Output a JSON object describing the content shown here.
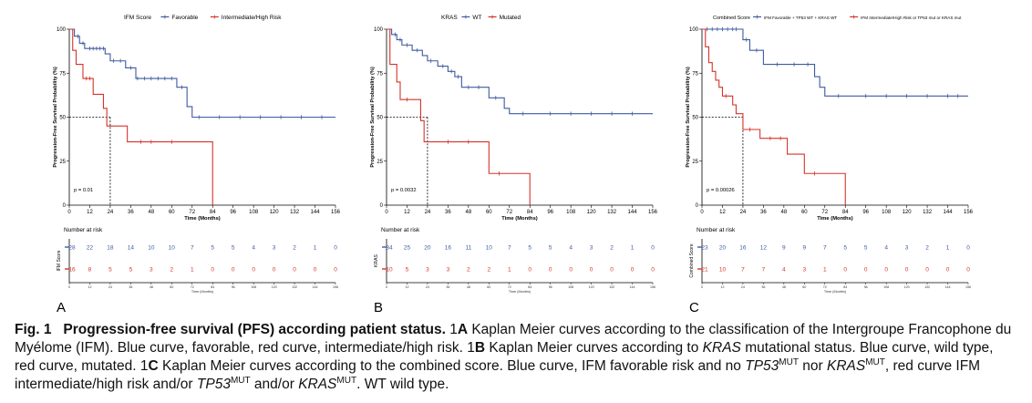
{
  "colors": {
    "blue": "#3f5aa0",
    "red": "#d6332a",
    "axis": "#000000"
  },
  "panels_common": {
    "y_title": "Progression-Free Survival Probability (%)",
    "x_title": "Time (Months)",
    "risk_title": "Number at risk",
    "risk_x_title": "Time (Months)",
    "x_ticks": [
      0,
      12,
      24,
      36,
      48,
      60,
      72,
      84,
      96,
      108,
      120,
      132,
      144,
      156
    ],
    "y_ticks": [
      0,
      25,
      50,
      75,
      100
    ]
  },
  "chart_data": [
    {
      "type": "line",
      "panel_label": "A",
      "legend_title": "IFM Score",
      "risk_ylabel": "IFM Score",
      "p_value": "p = 0.01",
      "median_x": 24,
      "xlim": [
        0,
        156
      ],
      "ylim": [
        0,
        100
      ],
      "series": [
        {
          "name": "Favorable",
          "color": "#3f5aa0",
          "steps": [
            [
              0,
              100
            ],
            [
              3,
              96
            ],
            [
              6,
              92
            ],
            [
              9,
              89
            ],
            [
              21,
              86
            ],
            [
              24,
              82
            ],
            [
              33,
              78
            ],
            [
              39,
              72
            ],
            [
              63,
              67
            ],
            [
              69,
              56
            ],
            [
              72,
              50
            ],
            [
              156,
              50
            ]
          ],
          "censors": [
            [
              5,
              96
            ],
            [
              8,
              92
            ],
            [
              12,
              89
            ],
            [
              14,
              89
            ],
            [
              16,
              89
            ],
            [
              18,
              89
            ],
            [
              20,
              89
            ],
            [
              26,
              82
            ],
            [
              30,
              82
            ],
            [
              36,
              78
            ],
            [
              40,
              72
            ],
            [
              44,
              72
            ],
            [
              48,
              72
            ],
            [
              52,
              72
            ],
            [
              56,
              72
            ],
            [
              60,
              72
            ],
            [
              66,
              67
            ],
            [
              76,
              50
            ],
            [
              88,
              50
            ],
            [
              100,
              50
            ],
            [
              112,
              50
            ],
            [
              124,
              50
            ],
            [
              136,
              50
            ],
            [
              148,
              50
            ]
          ],
          "at_risk": [
            28,
            22,
            18,
            14,
            10,
            10,
            7,
            5,
            5,
            4,
            3,
            2,
            1,
            0
          ]
        },
        {
          "name": "Intermediate/High Risk",
          "color": "#d6332a",
          "steps": [
            [
              0,
              100
            ],
            [
              2,
              88
            ],
            [
              4,
              80
            ],
            [
              8,
              72
            ],
            [
              14,
              63
            ],
            [
              20,
              55
            ],
            [
              22,
              45
            ],
            [
              34,
              36
            ],
            [
              84,
              0
            ]
          ],
          "censors": [
            [
              10,
              72
            ],
            [
              12,
              72
            ],
            [
              42,
              36
            ],
            [
              48,
              36
            ],
            [
              60,
              36
            ]
          ],
          "at_risk": [
            16,
            8,
            5,
            5,
            3,
            2,
            1,
            0,
            0,
            0,
            0,
            0,
            0,
            0
          ]
        }
      ]
    },
    {
      "type": "line",
      "panel_label": "B",
      "legend_title": "KRAS",
      "risk_ylabel": "KRAS",
      "p_value": "p = 0.0032",
      "median_x": 24,
      "xlim": [
        0,
        156
      ],
      "ylim": [
        0,
        100
      ],
      "series": [
        {
          "name": "WT",
          "color": "#3f5aa0",
          "steps": [
            [
              0,
              100
            ],
            [
              3,
              97
            ],
            [
              6,
              94
            ],
            [
              9,
              91
            ],
            [
              15,
              88
            ],
            [
              21,
              85
            ],
            [
              24,
              82
            ],
            [
              30,
              79
            ],
            [
              36,
              76
            ],
            [
              40,
              73
            ],
            [
              44,
              67
            ],
            [
              60,
              61
            ],
            [
              69,
              55
            ],
            [
              72,
              52
            ],
            [
              156,
              52
            ]
          ],
          "censors": [
            [
              5,
              97
            ],
            [
              8,
              94
            ],
            [
              12,
              91
            ],
            [
              18,
              88
            ],
            [
              26,
              82
            ],
            [
              33,
              79
            ],
            [
              38,
              76
            ],
            [
              42,
              73
            ],
            [
              48,
              67
            ],
            [
              54,
              67
            ],
            [
              64,
              61
            ],
            [
              80,
              52
            ],
            [
              96,
              52
            ],
            [
              108,
              52
            ],
            [
              120,
              52
            ],
            [
              132,
              52
            ],
            [
              144,
              52
            ]
          ],
          "at_risk": [
            34,
            25,
            20,
            16,
            11,
            10,
            7,
            5,
            5,
            4,
            3,
            2,
            1,
            0
          ]
        },
        {
          "name": "Mutated",
          "color": "#d6332a",
          "steps": [
            [
              0,
              100
            ],
            [
              2,
              80
            ],
            [
              6,
              70
            ],
            [
              8,
              60
            ],
            [
              20,
              48
            ],
            [
              22,
              36
            ],
            [
              60,
              18
            ],
            [
              72,
              18
            ],
            [
              84,
              0
            ]
          ],
          "censors": [
            [
              12,
              60
            ],
            [
              36,
              36
            ],
            [
              48,
              36
            ],
            [
              66,
              18
            ]
          ],
          "at_risk": [
            10,
            5,
            3,
            3,
            2,
            2,
            1,
            0,
            0,
            0,
            0,
            0,
            0,
            0
          ]
        }
      ]
    },
    {
      "type": "line",
      "panel_label": "C",
      "legend_title": "Combined Score",
      "risk_ylabel": "Combined Score",
      "p_value": "p = 0.00026",
      "median_x": 24,
      "xlim": [
        0,
        156
      ],
      "ylim": [
        0,
        100
      ],
      "series": [
        {
          "name": "IFM Favorable + TP53 WT + KRAS WT",
          "color": "#3f5aa0",
          "steps": [
            [
              0,
              100
            ],
            [
              22,
              100
            ],
            [
              24,
              94
            ],
            [
              28,
              88
            ],
            [
              36,
              80
            ],
            [
              66,
              73
            ],
            [
              69,
              67
            ],
            [
              72,
              62
            ],
            [
              156,
              62
            ]
          ],
          "censors": [
            [
              3,
              100
            ],
            [
              6,
              100
            ],
            [
              9,
              100
            ],
            [
              12,
              100
            ],
            [
              15,
              100
            ],
            [
              18,
              100
            ],
            [
              20,
              100
            ],
            [
              26,
              94
            ],
            [
              32,
              88
            ],
            [
              44,
              80
            ],
            [
              54,
              80
            ],
            [
              62,
              80
            ],
            [
              80,
              62
            ],
            [
              96,
              62
            ],
            [
              108,
              62
            ],
            [
              120,
              62
            ],
            [
              132,
              62
            ],
            [
              144,
              62
            ],
            [
              150,
              62
            ]
          ],
          "at_risk": [
            23,
            20,
            16,
            12,
            9,
            9,
            7,
            5,
            5,
            4,
            3,
            2,
            1,
            0
          ]
        },
        {
          "name": "IFM Intermediate/High Risk or TP53 mut or KRAS mut",
          "color": "#d6332a",
          "steps": [
            [
              0,
              100
            ],
            [
              2,
              90
            ],
            [
              4,
              81
            ],
            [
              6,
              76
            ],
            [
              8,
              71
            ],
            [
              10,
              67
            ],
            [
              12,
              62
            ],
            [
              18,
              57
            ],
            [
              20,
              52
            ],
            [
              24,
              43
            ],
            [
              34,
              38
            ],
            [
              50,
              29
            ],
            [
              60,
              18
            ],
            [
              72,
              18
            ],
            [
              84,
              0
            ]
          ],
          "censors": [
            [
              14,
              62
            ],
            [
              28,
              43
            ],
            [
              40,
              38
            ],
            [
              46,
              38
            ],
            [
              66,
              18
            ]
          ],
          "at_risk": [
            21,
            10,
            7,
            7,
            4,
            3,
            1,
            0,
            0,
            0,
            0,
            0,
            0,
            0
          ]
        }
      ]
    }
  ],
  "caption": {
    "figure_label": "Fig. 1",
    "title": "Progression-free survival (PFS) according patient status.",
    "ref_1": "1",
    "ref_a": "A",
    "text_a": " Kaplan Meier curves according to the classification of the Intergroupe Francophone du Myélome (IFM). Blue curve, favorable, red curve, intermediate/high risk. ",
    "ref_b": "B",
    "text_b": " Kaplan Meier curves according to ",
    "kras": "KRAS",
    "text_b2": " mutational status. Blue curve, wild type, red curve, mutated. ",
    "ref_c": "C",
    "text_c": " Kaplan Meier curves according to the combined score. Blue curve, IFM favorable risk and no ",
    "tp53": "TP53",
    "mut": "MUT",
    "nor": " nor ",
    "text_c2": ", red curve IFM intermediate/high risk and/or ",
    "andor": " and/or ",
    "text_end": ". WT wild type."
  }
}
